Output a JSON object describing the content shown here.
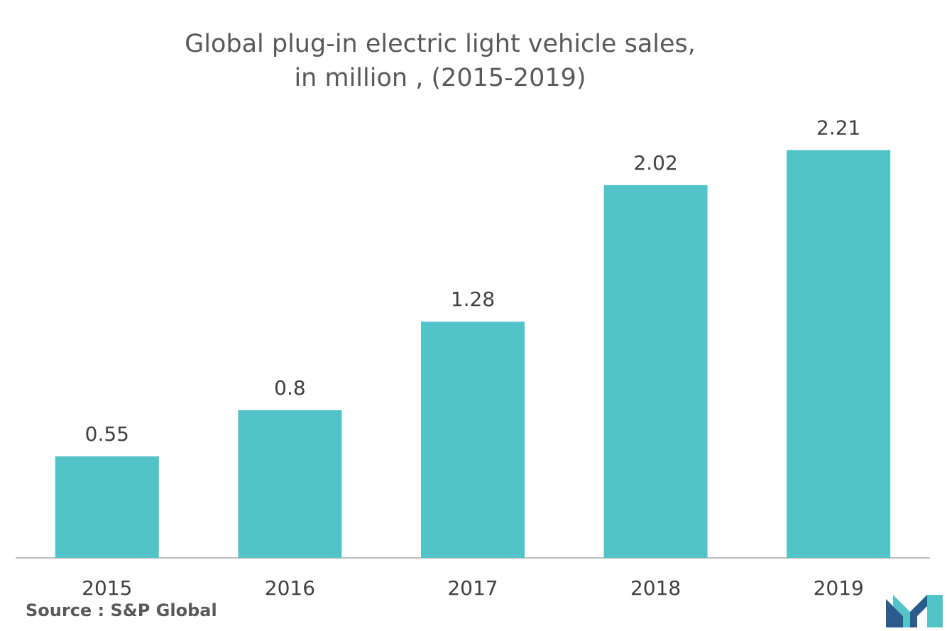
{
  "chart_data": {
    "type": "bar",
    "title_line1": "Global plug-in electric light vehicle sales,",
    "title_line2": "in million , (2015-2019)",
    "categories": [
      "2015",
      "2016",
      "2017",
      "2018",
      "2019"
    ],
    "values": [
      0.55,
      0.8,
      1.28,
      2.02,
      2.21
    ],
    "value_labels": [
      "0.55",
      "0.8",
      "1.28",
      "2.02",
      "2.21"
    ],
    "xlabel": "",
    "ylabel": "",
    "ylim": [
      0,
      2.5
    ],
    "grid": false,
    "bar_color": "#52C3C7"
  },
  "source": "Source : S&P Global",
  "logo": {
    "icon": "mordor-intelligence-logo-icon",
    "colors": [
      "#2a5b8c",
      "#52C3C7"
    ]
  }
}
